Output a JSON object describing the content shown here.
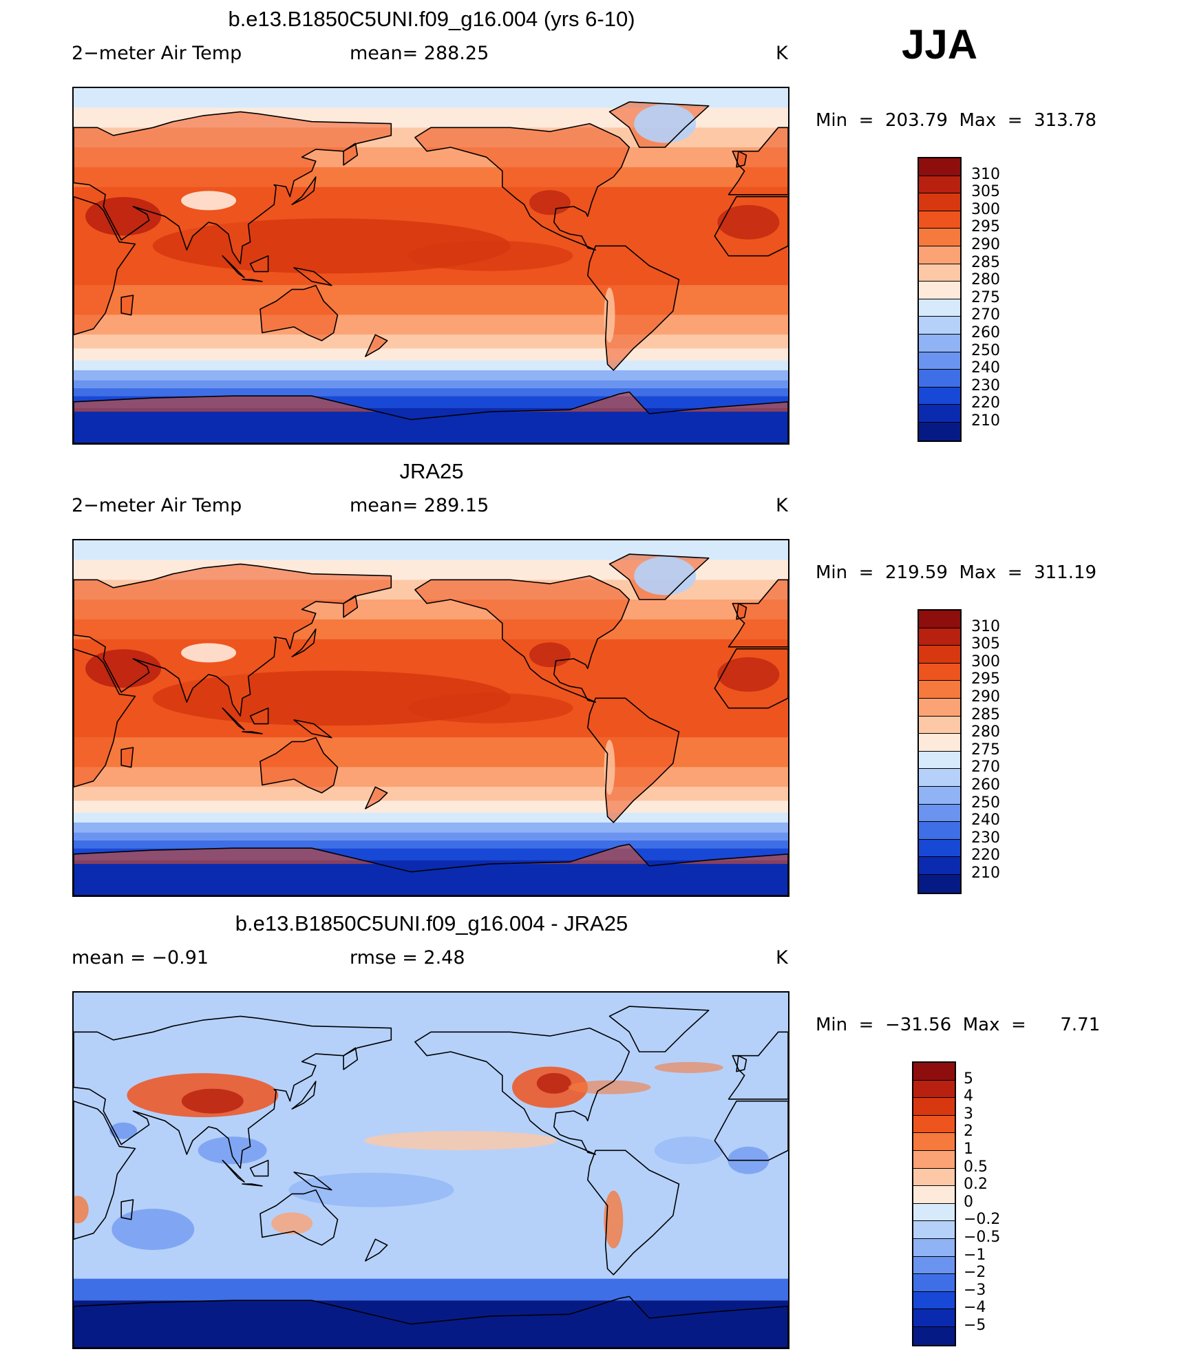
{
  "season": "JJA",
  "panels": [
    {
      "title": "b.e13.B1850C5UNI.f09_g16.004 (yrs 6-10)",
      "left_label": "2−meter Air Temp",
      "mid_label": "mean=  288.25",
      "units": "K",
      "minmax": "Min  =  203.79  Max  =  313.78",
      "colorbar": {
        "labels": [
          "310",
          "305",
          "300",
          "295",
          "290",
          "285",
          "280",
          "275",
          "270",
          "260",
          "250",
          "240",
          "230",
          "220",
          "210"
        ],
        "colors": [
          "#8e0d0d",
          "#b8200f",
          "#d7380f",
          "#ee541d",
          "#f6793d",
          "#fba374",
          "#fdc8a6",
          "#feeadb",
          "#d6eafb",
          "#b5d1fa",
          "#8fb3f5",
          "#6a94ef",
          "#3e6fe6",
          "#1848d6",
          "#0a2bb0",
          "#061a86"
        ]
      },
      "field": "model"
    },
    {
      "title": "JRA25",
      "left_label": "2−meter Air Temp",
      "mid_label": "mean=  289.15",
      "units": "K",
      "minmax": "Min  =  219.59  Max  =  311.19",
      "colorbar": {
        "labels": [
          "310",
          "305",
          "300",
          "295",
          "290",
          "285",
          "280",
          "275",
          "270",
          "260",
          "250",
          "240",
          "230",
          "220",
          "210"
        ],
        "colors": [
          "#8e0d0d",
          "#b8200f",
          "#d7380f",
          "#ee541d",
          "#f6793d",
          "#fba374",
          "#fdc8a6",
          "#feeadb",
          "#d6eafb",
          "#b5d1fa",
          "#8fb3f5",
          "#6a94ef",
          "#3e6fe6",
          "#1848d6",
          "#0a2bb0",
          "#061a86"
        ]
      },
      "field": "obs"
    },
    {
      "title": "b.e13.B1850C5UNI.f09_g16.004 - JRA25",
      "left_label": "mean  =     −0.91",
      "mid_label": "rmse  =      2.48",
      "units": "K",
      "minmax": "Min  =  −31.56  Max  =      7.71",
      "colorbar": {
        "labels": [
          "5",
          "4",
          "3",
          "2",
          "1",
          "0.5",
          "0.2",
          "0",
          "−0.2",
          "−0.5",
          "−1",
          "−2",
          "−3",
          "−4",
          "−5"
        ],
        "colors": [
          "#8e0d0d",
          "#b8200f",
          "#d7380f",
          "#ee541d",
          "#f6793d",
          "#fba374",
          "#fdc8a6",
          "#feeadb",
          "#d6eafb",
          "#b5d1fa",
          "#8fb3f5",
          "#6a94ef",
          "#3e6fe6",
          "#1848d6",
          "#0a2bb0",
          "#061a86"
        ]
      },
      "field": "diff"
    }
  ]
}
